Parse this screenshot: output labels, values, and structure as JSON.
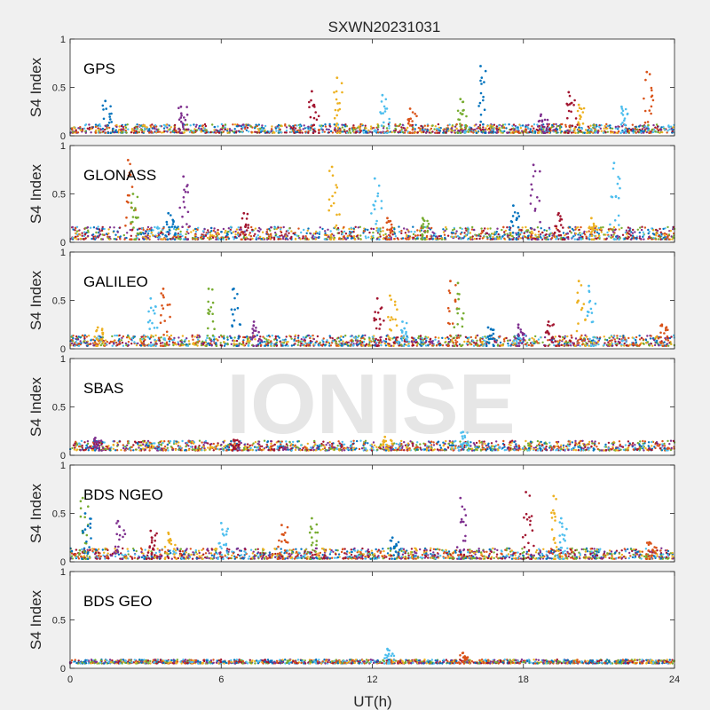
{
  "figure": {
    "title": "SXWN20231031",
    "watermark": "IONISE",
    "xlabel": "UT(h)",
    "ylabel": "S4 Index"
  },
  "colors": {
    "background": "#f0f0f0",
    "axes_bg": "#ffffff",
    "axis_line": "#262626",
    "series_palette": [
      "#0072BD",
      "#D95319",
      "#EDB120",
      "#7E2F8E",
      "#77AC30",
      "#4DBEEE",
      "#A2142F"
    ]
  },
  "chart_data": [
    {
      "type": "scatter",
      "label": "GPS",
      "xlim": [
        0,
        24
      ],
      "ylim": [
        0,
        1
      ],
      "xticks": [
        0,
        6,
        12,
        18,
        24
      ],
      "yticks": [
        0,
        0.5,
        1
      ],
      "ytick_labels": [
        "0",
        "0.5",
        "1"
      ],
      "xtick_labels": [
        "",
        "",
        "",
        "",
        ""
      ],
      "baseline": [
        0.03,
        0.12
      ],
      "spikes": [
        {
          "x": 1.4,
          "y": 0.36
        },
        {
          "x": 4.4,
          "y": 0.3
        },
        {
          "x": 9.6,
          "y": 0.46
        },
        {
          "x": 10.6,
          "y": 0.6
        },
        {
          "x": 12.4,
          "y": 0.42
        },
        {
          "x": 13.5,
          "y": 0.28
        },
        {
          "x": 15.5,
          "y": 0.38
        },
        {
          "x": 16.3,
          "y": 0.72
        },
        {
          "x": 18.7,
          "y": 0.22
        },
        {
          "x": 19.8,
          "y": 0.45
        },
        {
          "x": 20.2,
          "y": 0.32
        },
        {
          "x": 21.9,
          "y": 0.3
        },
        {
          "x": 22.9,
          "y": 0.66
        }
      ]
    },
    {
      "type": "scatter",
      "label": "GLONASS",
      "xlim": [
        0,
        24
      ],
      "ylim": [
        0,
        1
      ],
      "xticks": [
        0,
        6,
        12,
        18,
        24
      ],
      "yticks": [
        0,
        0.5,
        1
      ],
      "ytick_labels": [
        "0",
        "0.5",
        "1"
      ],
      "xtick_labels": [
        "",
        "",
        "",
        "",
        ""
      ],
      "baseline": [
        0.03,
        0.16
      ],
      "spikes": [
        {
          "x": 2.3,
          "y": 0.85
        },
        {
          "x": 2.5,
          "y": 0.5
        },
        {
          "x": 3.9,
          "y": 0.3
        },
        {
          "x": 4.5,
          "y": 0.68
        },
        {
          "x": 6.9,
          "y": 0.3
        },
        {
          "x": 10.4,
          "y": 0.78
        },
        {
          "x": 12.1,
          "y": 0.66
        },
        {
          "x": 12.6,
          "y": 0.25
        },
        {
          "x": 14.0,
          "y": 0.25
        },
        {
          "x": 17.6,
          "y": 0.38
        },
        {
          "x": 18.4,
          "y": 0.8
        },
        {
          "x": 19.4,
          "y": 0.3
        },
        {
          "x": 20.7,
          "y": 0.25
        },
        {
          "x": 21.6,
          "y": 0.82
        }
      ]
    },
    {
      "type": "scatter",
      "label": "GALILEO",
      "xlim": [
        0,
        24
      ],
      "ylim": [
        0,
        1
      ],
      "xticks": [
        0,
        6,
        12,
        18,
        24
      ],
      "yticks": [
        0,
        0.5,
        1
      ],
      "ytick_labels": [
        "0",
        "0.5",
        "1"
      ],
      "xtick_labels": [
        "",
        "",
        "",
        "",
        ""
      ],
      "baseline": [
        0.03,
        0.14
      ],
      "spikes": [
        {
          "x": 1.1,
          "y": 0.22
        },
        {
          "x": 3.2,
          "y": 0.52
        },
        {
          "x": 3.7,
          "y": 0.62
        },
        {
          "x": 5.5,
          "y": 0.62
        },
        {
          "x": 6.5,
          "y": 0.62
        },
        {
          "x": 7.3,
          "y": 0.28
        },
        {
          "x": 12.2,
          "y": 0.52
        },
        {
          "x": 12.7,
          "y": 0.55
        },
        {
          "x": 13.2,
          "y": 0.28
        },
        {
          "x": 15.1,
          "y": 0.7
        },
        {
          "x": 15.4,
          "y": 0.68
        },
        {
          "x": 16.6,
          "y": 0.22
        },
        {
          "x": 17.8,
          "y": 0.25
        },
        {
          "x": 19.0,
          "y": 0.28
        },
        {
          "x": 20.2,
          "y": 0.7
        },
        {
          "x": 20.6,
          "y": 0.65
        },
        {
          "x": 23.5,
          "y": 0.25
        }
      ]
    },
    {
      "type": "scatter",
      "label": "SBAS",
      "xlim": [
        0,
        24
      ],
      "ylim": [
        0,
        1
      ],
      "xticks": [
        0,
        6,
        12,
        18,
        24
      ],
      "yticks": [
        0,
        0.5,
        1
      ],
      "ytick_labels": [
        "0",
        "0.5",
        "1"
      ],
      "xtick_labels": [
        "",
        "",
        "",
        "",
        ""
      ],
      "baseline": [
        0.05,
        0.15
      ],
      "spikes": [
        {
          "x": 1.0,
          "y": 0.18
        },
        {
          "x": 6.5,
          "y": 0.16
        },
        {
          "x": 12.5,
          "y": 0.19
        },
        {
          "x": 15.6,
          "y": 0.24
        }
      ]
    },
    {
      "type": "scatter",
      "label": "BDS NGEO",
      "xlim": [
        0,
        24
      ],
      "ylim": [
        0,
        1
      ],
      "xticks": [
        0,
        6,
        12,
        18,
        24
      ],
      "yticks": [
        0,
        0.5,
        1
      ],
      "ytick_labels": [
        "0",
        "0.5",
        "1"
      ],
      "xtick_labels": [
        "",
        "",
        "",
        "",
        ""
      ],
      "baseline": [
        0.03,
        0.14
      ],
      "spikes": [
        {
          "x": 0.5,
          "y": 0.66
        },
        {
          "x": 0.6,
          "y": 0.5
        },
        {
          "x": 1.9,
          "y": 0.42
        },
        {
          "x": 3.2,
          "y": 0.32
        },
        {
          "x": 3.9,
          "y": 0.3
        },
        {
          "x": 6.0,
          "y": 0.4
        },
        {
          "x": 8.4,
          "y": 0.38
        },
        {
          "x": 9.6,
          "y": 0.45
        },
        {
          "x": 12.8,
          "y": 0.25
        },
        {
          "x": 15.5,
          "y": 0.66
        },
        {
          "x": 18.1,
          "y": 0.72
        },
        {
          "x": 19.2,
          "y": 0.68
        },
        {
          "x": 19.5,
          "y": 0.45
        },
        {
          "x": 23.0,
          "y": 0.2
        }
      ]
    },
    {
      "type": "scatter",
      "label": "BDS GEO",
      "xlim": [
        0,
        24
      ],
      "ylim": [
        0,
        1
      ],
      "xticks": [
        0,
        6,
        12,
        18,
        24
      ],
      "yticks": [
        0,
        0.5,
        1
      ],
      "ytick_labels": [
        "0",
        "0.5",
        "1"
      ],
      "xtick_labels": [
        "0",
        "6",
        "12",
        "18",
        "24"
      ],
      "baseline": [
        0.05,
        0.09
      ],
      "spikes": [
        {
          "x": 12.6,
          "y": 0.2
        },
        {
          "x": 15.6,
          "y": 0.16
        }
      ]
    }
  ]
}
